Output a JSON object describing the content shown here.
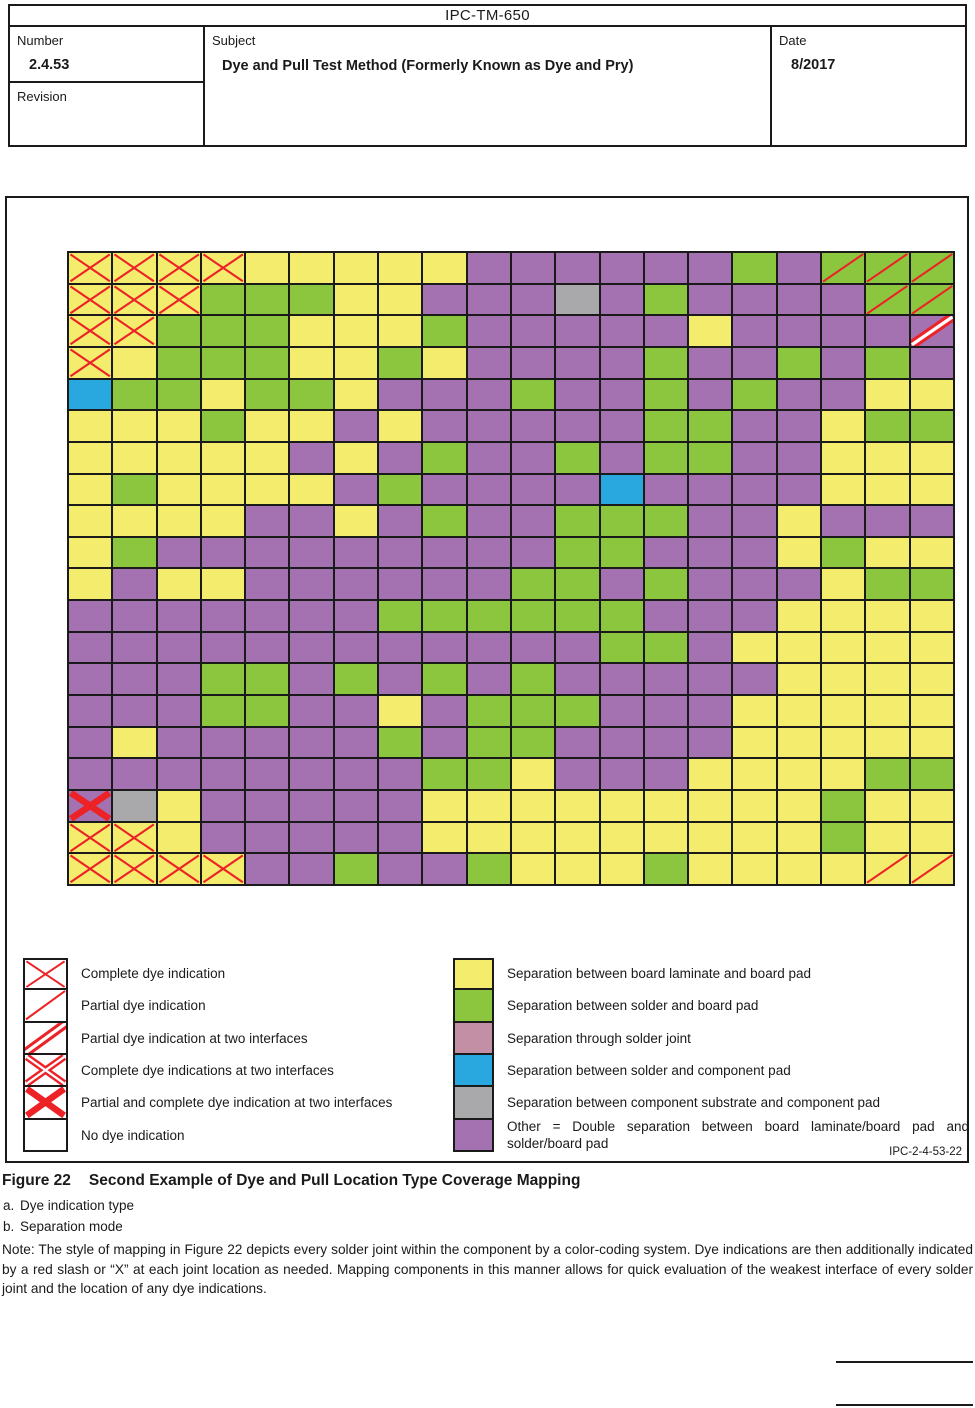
{
  "header": {
    "doc_code": "IPC-TM-650",
    "number_label": "Number",
    "number": "2.4.53",
    "revision_label": "Revision",
    "subject_label": "Subject",
    "subject": "Dye and Pull Test Method (Formerly Known as Dye and Pry)",
    "date_label": "Date",
    "date": "8/2017"
  },
  "figure": {
    "figure_id": "IPC-2-4-53-22",
    "legend_marks": [
      {
        "mark": "x",
        "label": "Complete dye indication"
      },
      {
        "mark": "s",
        "label": "Partial dye indication"
      },
      {
        "mark": "S",
        "label": "Partial dye indication at two interfaces"
      },
      {
        "mark": "XS",
        "label": "Complete dye indications at two interfaces"
      },
      {
        "mark": "X",
        "label": "Partial and complete dye indication at two interfaces"
      },
      {
        "mark": "",
        "label": "No dye indication"
      }
    ],
    "legend_colors": [
      {
        "color": "Y",
        "label": "Separation between board laminate and board pad"
      },
      {
        "color": "G",
        "label": "Separation between solder and board pad"
      },
      {
        "color": "K",
        "label": "Separation through solder joint"
      },
      {
        "color": "B",
        "label": "Separation between solder and component pad"
      },
      {
        "color": "A",
        "label": "Separation between component substrate and component pad"
      },
      {
        "color": "P",
        "label": "Other = Double separation between board laminate/board pad and solder/board pad"
      }
    ]
  },
  "chart_data": {
    "type": "heatmap",
    "rows": 20,
    "columns": 20,
    "color_key": {
      "Y": "#F3EC6C",
      "G": "#8CC63F",
      "K": "#C28FA5",
      "B": "#29A8E0",
      "A": "#A9A9AB",
      "P": "#A472B0"
    },
    "mark_color": "#EC2227",
    "mark_key": {
      "x": "complete dye indication",
      "s": "partial dye indication",
      "S": "partial dye indication at two interfaces",
      "XS": "complete dye indications at two interfaces",
      "X": "partial and complete dye indication at two interfaces"
    },
    "cells": [
      [
        "Yx",
        "Yx",
        "Yx",
        "Yx",
        "Y",
        "Y",
        "Y",
        "Y",
        "Y",
        "P",
        "P",
        "P",
        "P",
        "P",
        "P",
        "G",
        "P",
        "Gs",
        "Gs",
        "Gs"
      ],
      [
        "Yx",
        "Yx",
        "Yx",
        "G",
        "G",
        "G",
        "Y",
        "Y",
        "P",
        "P",
        "P",
        "A",
        "P",
        "G",
        "P",
        "P",
        "P",
        "P",
        "Gs",
        "Gs"
      ],
      [
        "Yx",
        "Yx",
        "G",
        "G",
        "G",
        "Y",
        "Y",
        "Y",
        "G",
        "P",
        "P",
        "P",
        "P",
        "P",
        "Y",
        "P",
        "P",
        "P",
        "P",
        "PS"
      ],
      [
        "Yx",
        "Y",
        "G",
        "G",
        "G",
        "Y",
        "Y",
        "G",
        "Y",
        "P",
        "P",
        "P",
        "P",
        "G",
        "P",
        "P",
        "G",
        "P",
        "G",
        "P"
      ],
      [
        "B",
        "G",
        "G",
        "Y",
        "G",
        "G",
        "Y",
        "P",
        "P",
        "P",
        "G",
        "P",
        "P",
        "G",
        "P",
        "G",
        "P",
        "P",
        "Y",
        "Y"
      ],
      [
        "Y",
        "Y",
        "Y",
        "G",
        "Y",
        "Y",
        "P",
        "Y",
        "P",
        "P",
        "P",
        "P",
        "P",
        "G",
        "G",
        "P",
        "P",
        "Y",
        "G",
        "G"
      ],
      [
        "Y",
        "Y",
        "Y",
        "Y",
        "Y",
        "P",
        "Y",
        "P",
        "G",
        "P",
        "P",
        "G",
        "P",
        "G",
        "G",
        "P",
        "P",
        "Y",
        "Y",
        "Y"
      ],
      [
        "Y",
        "G",
        "Y",
        "Y",
        "Y",
        "Y",
        "P",
        "G",
        "P",
        "P",
        "P",
        "P",
        "B",
        "P",
        "P",
        "P",
        "P",
        "Y",
        "Y",
        "Y"
      ],
      [
        "Y",
        "Y",
        "Y",
        "Y",
        "P",
        "P",
        "Y",
        "P",
        "G",
        "P",
        "P",
        "G",
        "G",
        "G",
        "P",
        "P",
        "Y",
        "P",
        "P",
        "P"
      ],
      [
        "Y",
        "G",
        "P",
        "P",
        "P",
        "P",
        "P",
        "P",
        "P",
        "P",
        "P",
        "G",
        "G",
        "P",
        "P",
        "P",
        "Y",
        "G",
        "Y",
        "Y"
      ],
      [
        "Y",
        "P",
        "Y",
        "Y",
        "P",
        "P",
        "P",
        "P",
        "P",
        "P",
        "G",
        "G",
        "P",
        "G",
        "P",
        "P",
        "P",
        "Y",
        "G",
        "G"
      ],
      [
        "P",
        "P",
        "P",
        "P",
        "P",
        "P",
        "P",
        "G",
        "G",
        "G",
        "G",
        "G",
        "G",
        "P",
        "P",
        "P",
        "Y",
        "Y",
        "Y",
        "Y"
      ],
      [
        "P",
        "P",
        "P",
        "P",
        "P",
        "P",
        "P",
        "P",
        "P",
        "P",
        "P",
        "P",
        "G",
        "G",
        "P",
        "Y",
        "Y",
        "Y",
        "Y",
        "Y"
      ],
      [
        "P",
        "P",
        "P",
        "G",
        "G",
        "P",
        "G",
        "P",
        "G",
        "P",
        "G",
        "P",
        "P",
        "P",
        "P",
        "P",
        "Y",
        "Y",
        "Y",
        "Y"
      ],
      [
        "P",
        "P",
        "P",
        "G",
        "G",
        "P",
        "P",
        "Y",
        "P",
        "G",
        "G",
        "G",
        "P",
        "P",
        "P",
        "Y",
        "Y",
        "Y",
        "Y",
        "Y"
      ],
      [
        "P",
        "Y",
        "P",
        "P",
        "P",
        "P",
        "P",
        "G",
        "P",
        "G",
        "G",
        "P",
        "P",
        "P",
        "P",
        "Y",
        "Y",
        "Y",
        "Y",
        "Y"
      ],
      [
        "P",
        "P",
        "P",
        "P",
        "P",
        "P",
        "P",
        "P",
        "G",
        "G",
        "Y",
        "P",
        "P",
        "P",
        "Y",
        "Y",
        "Y",
        "Y",
        "G",
        "G"
      ],
      [
        "PX",
        "A",
        "Y",
        "P",
        "P",
        "P",
        "P",
        "P",
        "Y",
        "Y",
        "Y",
        "Y",
        "Y",
        "Y",
        "Y",
        "Y",
        "Y",
        "G",
        "Y",
        "Y"
      ],
      [
        "Yx",
        "Yx",
        "Y",
        "P",
        "P",
        "P",
        "P",
        "P",
        "Y",
        "Y",
        "Y",
        "Y",
        "Y",
        "Y",
        "Y",
        "Y",
        "Y",
        "G",
        "Y",
        "Y"
      ],
      [
        "Yx",
        "Yx",
        "Yx",
        "Yx",
        "P",
        "P",
        "G",
        "P",
        "P",
        "G",
        "Y",
        "Y",
        "Y",
        "G",
        "Y",
        "Y",
        "Y",
        "Y",
        "Ys",
        "Ys"
      ]
    ]
  },
  "caption": {
    "fig_label": "Figure 22",
    "fig_title": "Second Example of Dye and Pull Location Type Coverage Mapping",
    "footnote_a_marker": "a.",
    "footnote_a": "Dye indication type",
    "footnote_b_marker": "b.",
    "footnote_b": "Separation mode",
    "note": "Note: The style of mapping in Figure 22 depicts every solder joint within the component by a color-coding system. Dye indications are then additionally indicated by a red slash or “X” at each joint location as needed. Mapping components in this manner allows for quick evaluation of the weakest interface of every solder joint and the location of any dye indications."
  }
}
